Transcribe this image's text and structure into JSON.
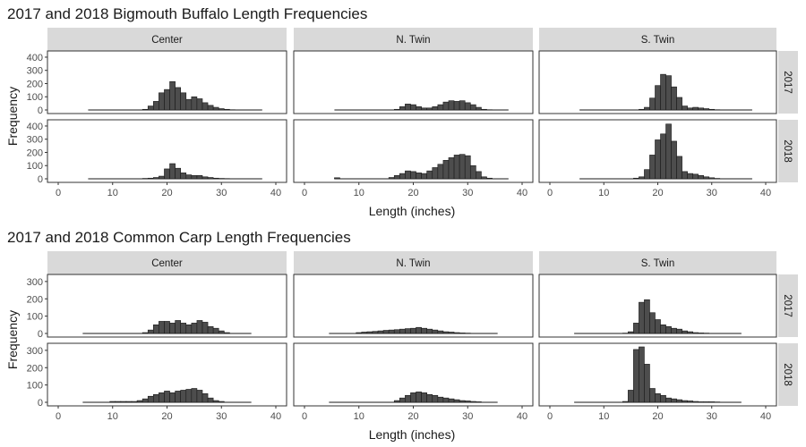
{
  "chart_data": [
    {
      "type": "bar",
      "title": "2017 and 2018 Bigmouth Buffalo Length Frequencies",
      "xlabel": "Length (inches)",
      "ylabel": "Frequency",
      "facet_columns": [
        "Center",
        "N. Twin",
        "S. Twin"
      ],
      "facet_rows": [
        "2017",
        "2018"
      ],
      "xlim": [
        0,
        40
      ],
      "x_ticks": [
        0,
        10,
        20,
        30,
        40
      ],
      "ylim": [
        0,
        420
      ],
      "y_ticks": [
        0,
        100,
        200,
        300,
        400
      ],
      "bin_width": 1,
      "panels": [
        {
          "column": "Center",
          "row": "2017",
          "bin_start": 5.5,
          "values": [
            0,
            0,
            0,
            0,
            0,
            0,
            0,
            0,
            0,
            0,
            5,
            30,
            65,
            130,
            155,
            215,
            170,
            130,
            80,
            100,
            85,
            55,
            35,
            20,
            10,
            5,
            2,
            0,
            0,
            0,
            0,
            0
          ]
        },
        {
          "column": "N. Twin",
          "row": "2017",
          "bin_start": 5.5,
          "values": [
            0,
            0,
            0,
            0,
            0,
            0,
            0,
            0,
            0,
            0,
            0,
            5,
            25,
            45,
            40,
            25,
            15,
            15,
            25,
            40,
            60,
            70,
            65,
            70,
            55,
            40,
            20,
            5,
            2,
            0,
            0,
            0
          ]
        },
        {
          "column": "S. Twin",
          "row": "2017",
          "bin_start": 5.5,
          "values": [
            0,
            0,
            0,
            0,
            0,
            0,
            0,
            0,
            0,
            0,
            0,
            5,
            20,
            90,
            185,
            270,
            260,
            175,
            95,
            30,
            15,
            20,
            15,
            10,
            5,
            2,
            0,
            0,
            0,
            0,
            0,
            0
          ]
        },
        {
          "column": "Center",
          "row": "2018",
          "bin_start": 5.5,
          "values": [
            0,
            0,
            0,
            0,
            0,
            0,
            0,
            0,
            0,
            0,
            3,
            5,
            10,
            20,
            75,
            115,
            80,
            45,
            30,
            25,
            25,
            15,
            10,
            5,
            3,
            2,
            0,
            0,
            0,
            0,
            0,
            0
          ]
        },
        {
          "column": "N. Twin",
          "row": "2018",
          "bin_start": 5.5,
          "values": [
            8,
            0,
            0,
            0,
            0,
            0,
            0,
            0,
            0,
            0,
            10,
            25,
            40,
            60,
            55,
            45,
            40,
            60,
            85,
            110,
            140,
            160,
            180,
            185,
            175,
            100,
            55,
            15,
            5,
            0,
            0,
            0
          ]
        },
        {
          "column": "S. Twin",
          "row": "2018",
          "bin_start": 5.5,
          "values": [
            0,
            0,
            0,
            0,
            0,
            0,
            0,
            0,
            0,
            0,
            5,
            15,
            70,
            180,
            295,
            340,
            415,
            285,
            170,
            55,
            40,
            35,
            25,
            15,
            8,
            3,
            0,
            0,
            0,
            0,
            0,
            0
          ]
        }
      ]
    },
    {
      "type": "bar",
      "title": "2017 and 2018 Common Carp Length Frequencies",
      "xlabel": "Length (inches)",
      "ylabel": "Frequency",
      "facet_columns": [
        "Center",
        "N. Twin",
        "S. Twin"
      ],
      "facet_rows": [
        "2017",
        "2018"
      ],
      "xlim": [
        0,
        40
      ],
      "x_ticks": [
        0,
        10,
        20,
        30,
        40
      ],
      "ylim": [
        0,
        320
      ],
      "y_ticks": [
        0,
        100,
        200,
        300
      ],
      "bin_width": 1,
      "panels": [
        {
          "column": "Center",
          "row": "2017",
          "bin_start": 4.5,
          "values": [
            0,
            0,
            0,
            0,
            0,
            0,
            0,
            0,
            0,
            0,
            0,
            5,
            20,
            50,
            70,
            70,
            60,
            75,
            60,
            50,
            60,
            75,
            65,
            40,
            30,
            15,
            5,
            0,
            0,
            0,
            0
          ]
        },
        {
          "column": "N. Twin",
          "row": "2017",
          "bin_start": 4.5,
          "values": [
            0,
            0,
            0,
            0,
            0,
            5,
            8,
            10,
            12,
            15,
            18,
            20,
            22,
            25,
            28,
            30,
            35,
            30,
            25,
            20,
            15,
            10,
            8,
            5,
            3,
            2,
            0,
            0,
            0,
            0,
            0
          ]
        },
        {
          "column": "S. Twin",
          "row": "2017",
          "bin_start": 4.5,
          "values": [
            0,
            0,
            0,
            0,
            0,
            0,
            0,
            0,
            0,
            2,
            10,
            60,
            180,
            195,
            120,
            80,
            50,
            40,
            30,
            25,
            15,
            10,
            5,
            3,
            2,
            0,
            0,
            0,
            0,
            0,
            0
          ]
        },
        {
          "column": "Center",
          "row": "2018",
          "bin_start": 4.5,
          "values": [
            0,
            0,
            0,
            0,
            0,
            5,
            5,
            5,
            5,
            5,
            10,
            20,
            35,
            45,
            55,
            65,
            55,
            65,
            70,
            75,
            80,
            70,
            50,
            25,
            10,
            5,
            0,
            0,
            0,
            0,
            0
          ]
        },
        {
          "column": "N. Twin",
          "row": "2018",
          "bin_start": 4.5,
          "values": [
            0,
            0,
            0,
            0,
            0,
            0,
            0,
            0,
            0,
            0,
            0,
            0,
            10,
            25,
            40,
            55,
            60,
            55,
            45,
            40,
            30,
            25,
            20,
            15,
            10,
            8,
            5,
            3,
            0,
            0,
            0
          ]
        },
        {
          "column": "S. Twin",
          "row": "2018",
          "bin_start": 4.5,
          "values": [
            0,
            0,
            0,
            0,
            0,
            0,
            0,
            0,
            0,
            5,
            70,
            305,
            320,
            220,
            80,
            50,
            40,
            25,
            20,
            15,
            10,
            8,
            5,
            3,
            3,
            3,
            2,
            0,
            0,
            0,
            0
          ]
        }
      ]
    }
  ]
}
